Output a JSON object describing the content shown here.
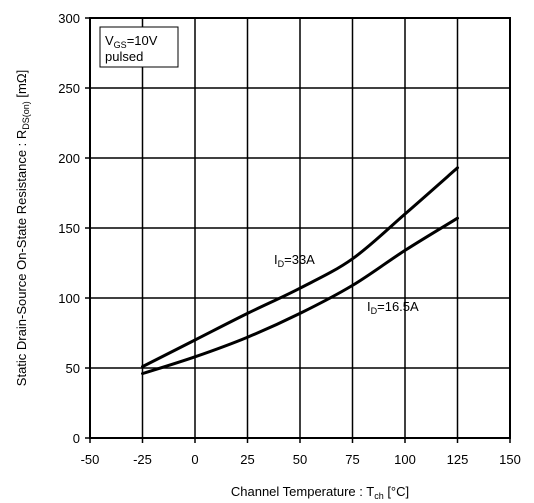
{
  "chart_data": {
    "type": "line",
    "title": "",
    "xlabel": {
      "main": "Channel Temperature :  T",
      "sub": "ch",
      "unit": " [°C]"
    },
    "ylabel": {
      "main": "Static Drain-Source On-State Resistance :  R",
      "sub": "DS(on)",
      "unit": " [mΩ]"
    },
    "xlim": [
      -50,
      150
    ],
    "ylim": [
      0,
      300
    ],
    "xticks": [
      -50,
      -25,
      0,
      25,
      50,
      75,
      100,
      125,
      150
    ],
    "yticks": [
      0,
      50,
      100,
      150,
      200,
      250,
      300
    ],
    "grid": true,
    "conditions": {
      "line1_pre": "V",
      "line1_sub": "GS",
      "line1_post": "=10V",
      "line2": "pulsed"
    },
    "series": [
      {
        "name": "I_D=33A",
        "label": {
          "pre": "I",
          "sub": "D",
          "post": "=33A"
        },
        "x": [
          -25,
          0,
          25,
          50,
          75,
          100,
          125
        ],
        "y": [
          51,
          70,
          89,
          107,
          128,
          160,
          193
        ]
      },
      {
        "name": "I_D=16.5A",
        "label": {
          "pre": "I",
          "sub": "D",
          "post": "=16.5A"
        },
        "x": [
          -25,
          0,
          25,
          50,
          75,
          100,
          125
        ],
        "y": [
          46,
          58,
          72,
          89,
          109,
          134,
          157
        ]
      }
    ],
    "colors": {
      "line": "#000000",
      "grid": "#000000",
      "background": "#ffffff"
    }
  }
}
